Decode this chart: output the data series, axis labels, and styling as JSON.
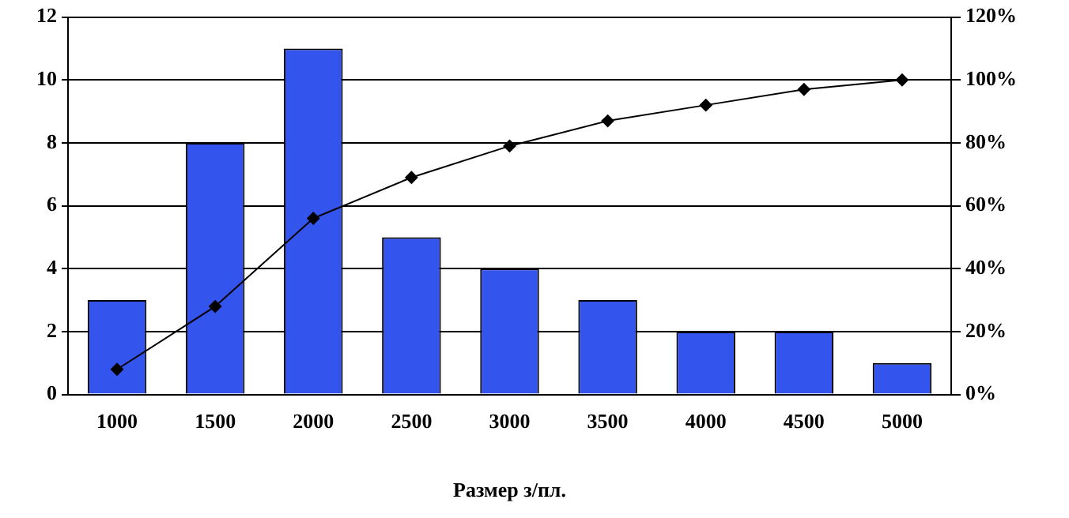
{
  "chart_data": {
    "type": "bar",
    "xlabel": "Размер з/пл.",
    "categories": [
      "1000",
      "1500",
      "2000",
      "2500",
      "3000",
      "3500",
      "4000",
      "4500",
      "5000"
    ],
    "series": [
      {
        "color": "#3355ee",
        "values": [
          3,
          8,
          11,
          5,
          4,
          3,
          2,
          2,
          1
        ]
      },
      {
        "type": "line",
        "axis": "y2",
        "color": "#000000",
        "marker": "diamond",
        "values": [
          8,
          28,
          56,
          69,
          79,
          87,
          92,
          97,
          100
        ]
      }
    ],
    "ylim": [
      0,
      12
    ],
    "yticks": [
      0,
      2,
      4,
      6,
      8,
      10,
      12
    ],
    "y2lim": [
      0,
      120
    ],
    "y2ticks": [
      {
        "value": 0,
        "label": "0%"
      },
      {
        "value": 20,
        "label": "20%"
      },
      {
        "value": 40,
        "label": "40%"
      },
      {
        "value": 60,
        "label": "60%"
      },
      {
        "value": 80,
        "label": "80%"
      },
      {
        "value": 100,
        "label": "100%"
      },
      {
        "value": 120,
        "label": "120%"
      }
    ],
    "grid": "y",
    "legend": false
  }
}
